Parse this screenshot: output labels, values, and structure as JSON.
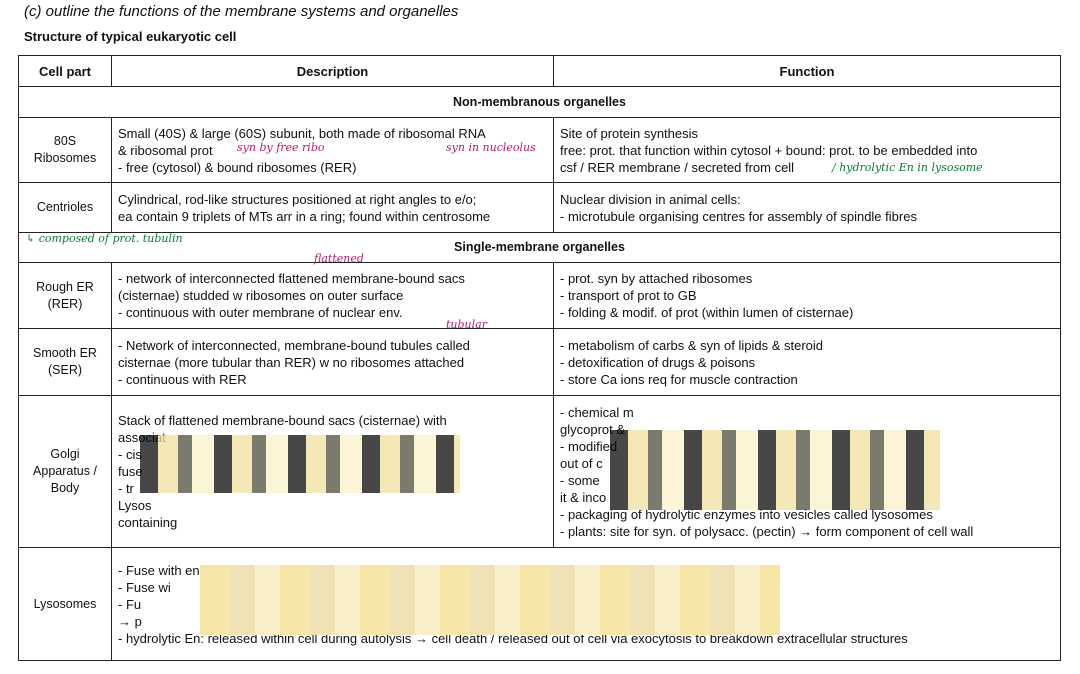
{
  "header": {
    "title": "(c) outline the functions of the membrane systems and organelles",
    "subtitle": "Structure of typical eukaryotic cell"
  },
  "table": {
    "columns": [
      "Cell part",
      "Description",
      "Function"
    ],
    "rows": [
      {
        "section": "Non-membranous organelles"
      },
      {
        "part": [
          "80S",
          "Ribosomes"
        ],
        "description": [
          "Small (40S) & large (60S) subunit, both made of ribosomal RNA",
          "& ribosomal prot",
          "- free (cytosol) & bound ribosomes (RER)"
        ],
        "function": [
          "Site of protein synthesis",
          "free: prot. that function within cytosol + bound: prot. to be embedded into",
          "csf / RER membrane / secreted from cell"
        ]
      },
      {
        "part": [
          "Centrioles"
        ],
        "description": [
          "Cylindrical, rod-like structures positioned at right angles to e/o;",
          "ea contain 9 triplets of MTs arr in a ring; found within centrosome"
        ],
        "function": [
          "Nuclear division in animal cells:",
          "- microtubule organising centres for assembly of spindle fibres"
        ]
      },
      {
        "section": "Single-membrane organelles"
      },
      {
        "part": [
          "Rough ER",
          "(RER)"
        ],
        "description": [
          "- network of interconnected flattened membrane-bound sacs",
          "(cisternae) studded w ribosomes on outer surface",
          "- continuous with outer membrane of nuclear env."
        ],
        "function": [
          "- prot. syn by attached ribosomes",
          "- transport of prot to GB",
          "- folding & modif. of prot (within lumen of cisternae)"
        ]
      },
      {
        "part": [
          "Smooth ER",
          "(SER)"
        ],
        "description": [
          "- Network of interconnected, membrane-bound tubules called",
          "cisternae (more tubular than RER) w no ribosomes attached",
          "- continuous with RER"
        ],
        "function": [
          "- metabolism of carbs & syn of lipids & steroid",
          "- detoxification of drugs & poisons",
          "- store Ca ions req for muscle contraction"
        ]
      },
      {
        "part": [
          "Golgi",
          "Apparatus /",
          "Body"
        ],
        "description": [
          "Stack of flattened membrane-bound sacs (cisternae) with",
          "associat",
          "- cis",
          "fuse",
          "- tr",
          "Lysos",
          "containing"
        ],
        "function": [
          "- chemical m",
          "glycoprot &",
          "- modified",
          "out of c",
          "- some",
          "it & inco",
          "- packaging of hydrolytic enzymes into vesicles called lysosomes",
          "- plants: site for syn. of polysacc. (pectin) → form component of cell wall"
        ]
      },
      {
        "part": [
          "Lysosomes"
        ],
        "description": [
          "- Fuse with endocytic vesicles containing food, releasing",
          "- Fuse wi",
          "- Fu",
          "→ p",
          "- hydrolytic En: released within cell during autolysis → cell death / released out of cell via exocytosis to breakdown extracellular structures"
        ]
      }
    ]
  },
  "annotations": [
    "syn by free ribo",
    "syn in nucleolus",
    "/ hydrolytic En in lysosome",
    "↳ composed of prot. tubulin",
    "flattened",
    "tubular"
  ]
}
